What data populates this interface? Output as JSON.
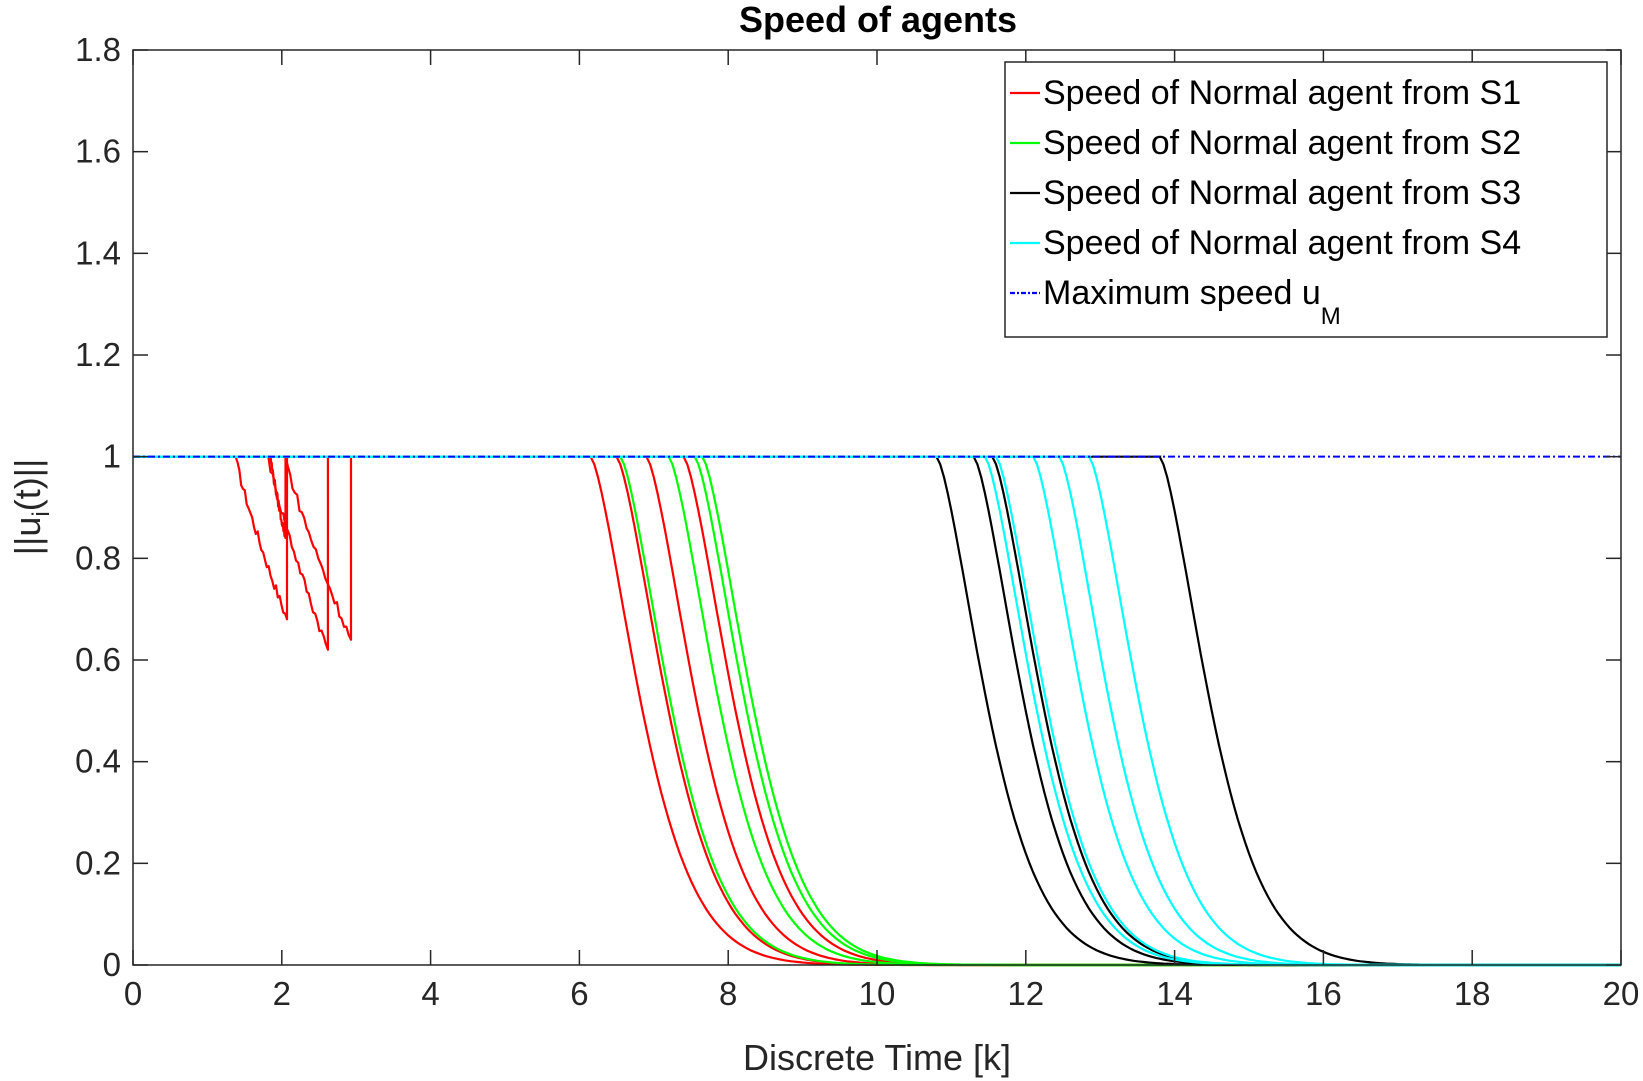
{
  "chart_data": {
    "type": "line",
    "title": "Speed of agents",
    "xlabel": "Discrete Time [k]",
    "ylabel": {
      "main": "||u",
      "sub": "i",
      "tail": "(t)||"
    },
    "xlim": [
      0,
      20
    ],
    "ylim": [
      0,
      1.8
    ],
    "xticks": [
      "0",
      "2",
      "4",
      "6",
      "8",
      "10",
      "12",
      "14",
      "16",
      "18",
      "20"
    ],
    "yticks": [
      "0",
      "0.2",
      "0.4",
      "0.6",
      "0.8",
      "1",
      "1.2",
      "1.4",
      "1.6",
      "1.8"
    ],
    "grid": false,
    "legend_position": "top-right",
    "series": [
      {
        "name": "Speed of Normal agent from S1",
        "color": "#ff0000",
        "spikes": [
          {
            "start": 1.38,
            "end": 2.07,
            "min": 0.68
          },
          {
            "start": 1.82,
            "end": 2.62,
            "min": 0.62
          },
          {
            "start": 1.85,
            "end": 2.05,
            "min": 0.84
          },
          {
            "start": 2.05,
            "end": 2.93,
            "min": 0.64
          }
        ],
        "decay_starts": [
          6.15,
          6.5,
          6.9,
          7.4
        ]
      },
      {
        "name": "Speed of Normal agent from S2",
        "color": "#00ff00",
        "decay_starts": [
          6.55,
          7.2,
          7.55,
          7.65
        ]
      },
      {
        "name": "Speed of Normal agent from S3",
        "color": "#000000",
        "decay_starts": [
          10.8,
          11.3,
          11.55,
          13.8
        ]
      },
      {
        "name": "Speed of Normal agent from S4",
        "color": "#00ffff",
        "decay_starts": [
          11.45,
          11.6,
          12.1,
          12.45,
          12.85
        ]
      },
      {
        "name": "Maximum speed u",
        "name_sub": "M",
        "color": "#0000ff",
        "style": "dash-dot",
        "value": 1
      }
    ]
  }
}
